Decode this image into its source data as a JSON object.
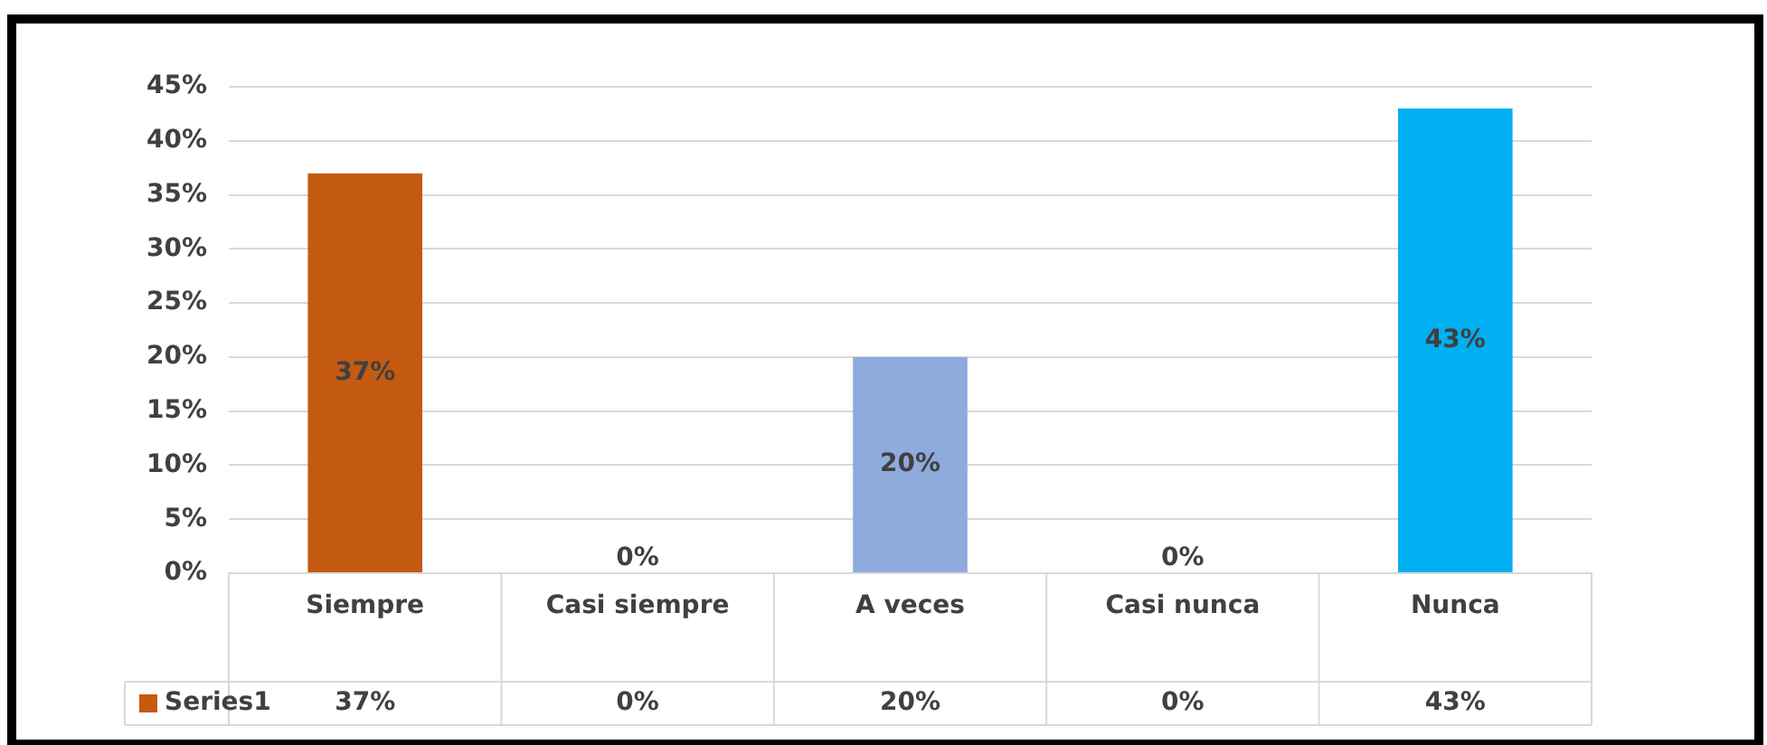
{
  "chart_data": {
    "type": "bar",
    "categories": [
      "Siempre",
      "Casi siempre",
      "A veces",
      "Casi nunca",
      "Nunca"
    ],
    "series": [
      {
        "name": "Series1",
        "color": "#c55a11",
        "colors": [
          "#c55a11",
          "#70ad47",
          "#8faadc",
          "#c0669c",
          "#00b0f0"
        ],
        "values": [
          37,
          0,
          20,
          0,
          43
        ],
        "value_labels": [
          "37%",
          "0%",
          "20%",
          "0%",
          "43%"
        ]
      }
    ],
    "ylim": [
      0,
      45
    ],
    "yticks": [
      {
        "value": 0,
        "label": "0%"
      },
      {
        "value": 5,
        "label": "5%"
      },
      {
        "value": 10,
        "label": "10%"
      },
      {
        "value": 15,
        "label": "15%"
      },
      {
        "value": 20,
        "label": "20%"
      },
      {
        "value": 25,
        "label": "25%"
      },
      {
        "value": 30,
        "label": "30%"
      },
      {
        "value": 35,
        "label": "35%"
      },
      {
        "value": 40,
        "label": "40%"
      },
      {
        "value": 45,
        "label": "45%"
      }
    ],
    "grid": "y",
    "legend": "bottom"
  }
}
